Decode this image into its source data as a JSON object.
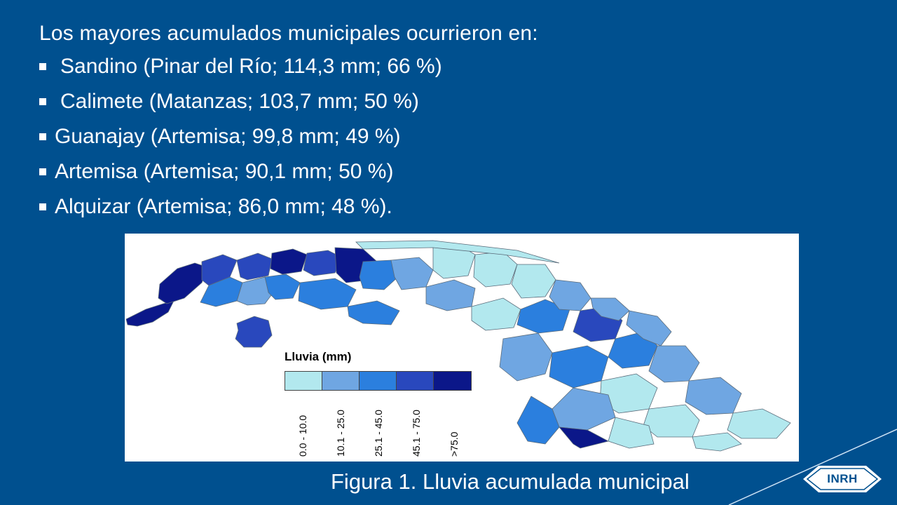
{
  "slide": {
    "intro": "Los mayores acumulados municipales ocurrieron en:",
    "bullets": [
      "Sandino (Pinar del Río; 114,3 mm; 66 %)",
      "Calimete (Matanzas; 103,7 mm; 50 %)",
      "Guanajay (Artemisa; 99,8 mm; 49 %)",
      "Artemisa (Artemisa; 90,1 mm; 50 %)",
      "Alquizar (Artemisa; 86,0 mm; 48 %)."
    ],
    "caption": "Figura 1. Lluvia acumulada municipal",
    "logo_text": "INRH"
  },
  "map": {
    "legend_title": "Lluvia (mm)",
    "classes": [
      {
        "label": "0.0 - 10.0",
        "color": "#b2e8ee"
      },
      {
        "label": "10.1 - 25.0",
        "color": "#6fa6e2"
      },
      {
        "label": "25.1 - 45.0",
        "color": "#2b7fde"
      },
      {
        "label": "45.1 - 75.0",
        "color": "#2948bd"
      },
      {
        "label": ">75.0",
        "color": "#0b1789"
      }
    ]
  },
  "colors": {
    "background": "#00508f",
    "map_background": "#ffffff",
    "text": "#ffffff"
  }
}
